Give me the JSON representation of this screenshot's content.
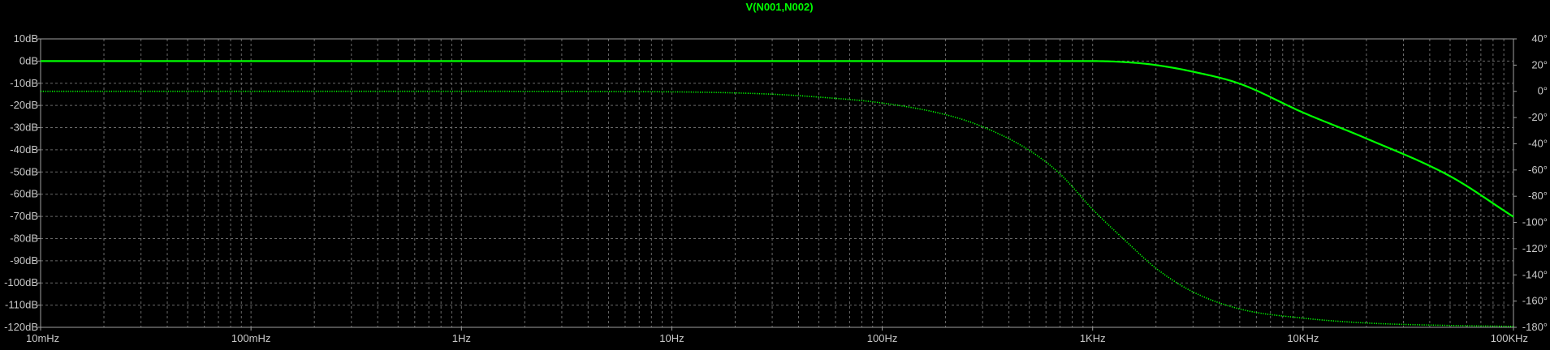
{
  "chart_data": {
    "type": "line",
    "title": "V(N001,N002)",
    "xscale": "log",
    "xlim": [
      0.01,
      100000
    ],
    "x_ticks": [
      {
        "value": 0.01,
        "label": "10mHz"
      },
      {
        "value": 0.1,
        "label": "100mHz"
      },
      {
        "value": 1,
        "label": "1Hz"
      },
      {
        "value": 10,
        "label": "10Hz"
      },
      {
        "value": 100,
        "label": "100Hz"
      },
      {
        "value": 1000,
        "label": "1KHz"
      },
      {
        "value": 10000,
        "label": "10KHz"
      },
      {
        "value": 100000,
        "label": "100KHz"
      }
    ],
    "ylim": [
      -120,
      10
    ],
    "y_ticks": [
      {
        "value": 10,
        "label": "10dB"
      },
      {
        "value": 0,
        "label": "0dB"
      },
      {
        "value": -10,
        "label": "-10dB"
      },
      {
        "value": -20,
        "label": "-20dB"
      },
      {
        "value": -30,
        "label": "-30dB"
      },
      {
        "value": -40,
        "label": "-40dB"
      },
      {
        "value": -50,
        "label": "-50dB"
      },
      {
        "value": -60,
        "label": "-60dB"
      },
      {
        "value": -70,
        "label": "-70dB"
      },
      {
        "value": -80,
        "label": "-80dB"
      },
      {
        "value": -90,
        "label": "-90dB"
      },
      {
        "value": -100,
        "label": "-100dB"
      },
      {
        "value": -110,
        "label": "-110dB"
      },
      {
        "value": -120,
        "label": "-120dB"
      }
    ],
    "y2lim": [
      -180,
      40
    ],
    "y2_ticks": [
      {
        "value": 40,
        "label": "40°"
      },
      {
        "value": 20,
        "label": "20°"
      },
      {
        "value": 0,
        "label": "0°"
      },
      {
        "value": -20,
        "label": "-20°"
      },
      {
        "value": -40,
        "label": "-40°"
      },
      {
        "value": -60,
        "label": "-60°"
      },
      {
        "value": -80,
        "label": "-80°"
      },
      {
        "value": -100,
        "label": "-100°"
      },
      {
        "value": -120,
        "label": "-120°"
      },
      {
        "value": -140,
        "label": "-140°"
      },
      {
        "value": -160,
        "label": "-160°"
      },
      {
        "value": -180,
        "label": "-180°"
      }
    ],
    "grid": true,
    "series": [
      {
        "kind": "magnitude",
        "axis": "left",
        "style": "solid",
        "color": "#00ff00",
        "x": [
          0.01,
          1,
          100,
          500,
          1000,
          1500,
          2000,
          3000,
          5000,
          10000,
          20000,
          50000,
          100000
        ],
        "y": [
          0,
          0,
          0,
          0,
          0,
          -0.6,
          -1.8,
          -4.8,
          -10.2,
          -23.2,
          -34.9,
          -51.9,
          -70.2
        ]
      },
      {
        "kind": "phase",
        "axis": "right",
        "style": "dotted",
        "color": "#00ff00",
        "x": [
          0.01,
          1,
          10,
          30,
          50,
          100,
          200,
          300,
          500,
          700,
          1000,
          1500,
          2000,
          3000,
          5000,
          10000,
          20000,
          50000,
          100000
        ],
        "y": [
          0,
          0,
          -0.4,
          -2.2,
          -4.4,
          -8.9,
          -17.8,
          -27,
          -45,
          -63,
          -90,
          -117,
          -135,
          -153,
          -166,
          -173,
          -176.7,
          -178.6,
          -179.3
        ]
      }
    ]
  }
}
